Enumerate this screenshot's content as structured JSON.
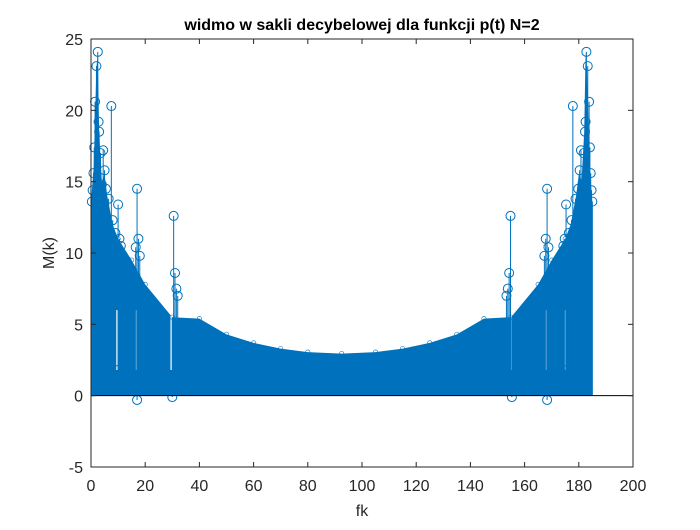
{
  "chart_data": {
    "type": "stem",
    "title": "widmo w sakli decybelowej dla funkcji p(t) N=2",
    "xlabel": "fk",
    "ylabel": "M(k)",
    "xlim": [
      0,
      200
    ],
    "ylim": [
      -5,
      25
    ],
    "xticks": [
      "0",
      "20",
      "40",
      "60",
      "80",
      "100",
      "120",
      "140",
      "160",
      "180",
      "200"
    ],
    "yticks": [
      "-5",
      "0",
      "5",
      "10",
      "15",
      "20",
      "25"
    ],
    "grid": false,
    "color": "#0072BD",
    "baseline": 0,
    "x_range": [
      0,
      185
    ],
    "floor_profile": [
      {
        "x": 10,
        "y": 11
      },
      {
        "x": 15,
        "y": 9.5
      },
      {
        "x": 20,
        "y": 7.8
      },
      {
        "x": 30,
        "y": 5.5
      },
      {
        "x": 40,
        "y": 5.4
      },
      {
        "x": 50,
        "y": 4.3
      },
      {
        "x": 60,
        "y": 3.7
      },
      {
        "x": 70,
        "y": 3.3
      },
      {
        "x": 80,
        "y": 3.05
      },
      {
        "x": 92.5,
        "y": 2.95
      },
      {
        "x": 105,
        "y": 3.05
      },
      {
        "x": 115,
        "y": 3.3
      },
      {
        "x": 125,
        "y": 3.7
      },
      {
        "x": 135,
        "y": 4.3
      },
      {
        "x": 145,
        "y": 5.4
      },
      {
        "x": 155,
        "y": 5.5
      },
      {
        "x": 165,
        "y": 7.8
      },
      {
        "x": 170,
        "y": 9.5
      },
      {
        "x": 175,
        "y": 11
      }
    ],
    "peaks": [
      {
        "x": 0.3,
        "y": 13.6
      },
      {
        "x": 0.6,
        "y": 14.4
      },
      {
        "x": 0.9,
        "y": 15.6
      },
      {
        "x": 1.2,
        "y": 17.4
      },
      {
        "x": 1.5,
        "y": 20.6
      },
      {
        "x": 2.0,
        "y": 23.1
      },
      {
        "x": 2.5,
        "y": 24.1
      },
      {
        "x": 2.8,
        "y": 19.2
      },
      {
        "x": 3.0,
        "y": 18.5
      },
      {
        "x": 3.5,
        "y": 17.0
      },
      {
        "x": 4.0,
        "y": 14.8
      },
      {
        "x": 4.5,
        "y": 17.2
      },
      {
        "x": 5.0,
        "y": 15.8
      },
      {
        "x": 5.5,
        "y": 14.5
      },
      {
        "x": 6.5,
        "y": 13.8
      },
      {
        "x": 7.5,
        "y": 20.3
      },
      {
        "x": 8.0,
        "y": 12.3
      },
      {
        "x": 9.0,
        "y": 11.4
      },
      {
        "x": 10.0,
        "y": 13.4
      },
      {
        "x": 10.5,
        "y": 11.0
      },
      {
        "x": 11.0,
        "y": 10.5
      },
      {
        "x": 16.5,
        "y": 10.4
      },
      {
        "x": 17.0,
        "y": 14.5
      },
      {
        "x": 17.5,
        "y": 11.0
      },
      {
        "x": 18.0,
        "y": 9.8
      },
      {
        "x": 30.5,
        "y": 12.6
      },
      {
        "x": 31.0,
        "y": 8.6
      },
      {
        "x": 31.5,
        "y": 7.5
      },
      {
        "x": 32.0,
        "y": 7.0
      },
      {
        "x": 17.0,
        "y": -0.3
      },
      {
        "x": 30.0,
        "y": -0.1
      },
      {
        "x": 10.0,
        "y": 1.8
      },
      {
        "x": 185.0,
        "y": 13.6
      },
      {
        "x": 184.7,
        "y": 14.4
      },
      {
        "x": 184.4,
        "y": 15.6
      },
      {
        "x": 184.1,
        "y": 17.4
      },
      {
        "x": 183.8,
        "y": 20.6
      },
      {
        "x": 183.3,
        "y": 23.1
      },
      {
        "x": 182.8,
        "y": 24.1
      },
      {
        "x": 182.5,
        "y": 19.2
      },
      {
        "x": 182.3,
        "y": 18.5
      },
      {
        "x": 181.8,
        "y": 17.0
      },
      {
        "x": 181.3,
        "y": 14.8
      },
      {
        "x": 180.8,
        "y": 17.2
      },
      {
        "x": 180.3,
        "y": 15.8
      },
      {
        "x": 179.8,
        "y": 14.5
      },
      {
        "x": 178.8,
        "y": 13.8
      },
      {
        "x": 177.8,
        "y": 20.3
      },
      {
        "x": 177.3,
        "y": 12.3
      },
      {
        "x": 176.3,
        "y": 11.4
      },
      {
        "x": 175.3,
        "y": 13.4
      },
      {
        "x": 174.8,
        "y": 11.0
      },
      {
        "x": 174.3,
        "y": 10.5
      },
      {
        "x": 168.8,
        "y": 10.4
      },
      {
        "x": 168.3,
        "y": 14.5
      },
      {
        "x": 167.8,
        "y": 11.0
      },
      {
        "x": 167.3,
        "y": 9.8
      },
      {
        "x": 154.8,
        "y": 12.6
      },
      {
        "x": 154.3,
        "y": 8.6
      },
      {
        "x": 153.8,
        "y": 7.5
      },
      {
        "x": 153.3,
        "y": 7.0
      },
      {
        "x": 168.3,
        "y": -0.3
      },
      {
        "x": 155.3,
        "y": -0.1
      },
      {
        "x": 175.3,
        "y": 1.8
      }
    ]
  }
}
